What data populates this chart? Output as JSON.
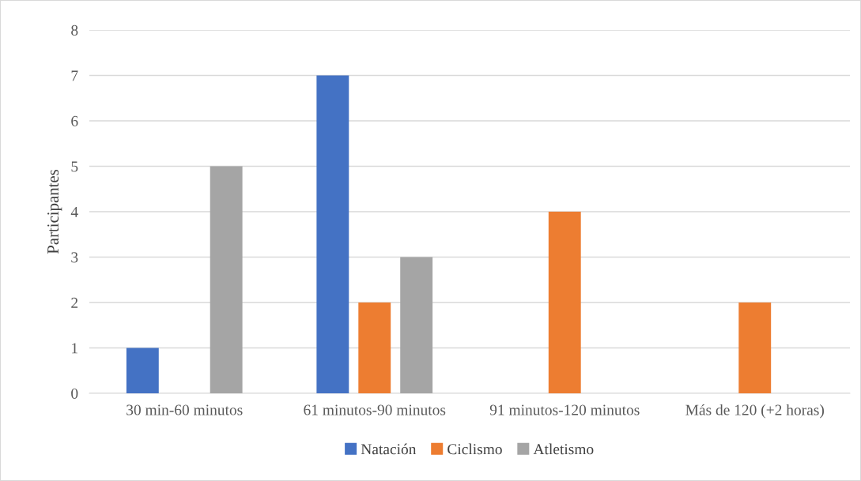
{
  "chart_data": {
    "type": "bar",
    "ylabel": "Participantes",
    "categories": [
      "30 min-60 minutos",
      "61 minutos-90 minutos",
      "91 minutos-120 minutos",
      "Más de 120 (+2 horas)"
    ],
    "series": [
      {
        "name": "Natación",
        "color": "#4472c4",
        "values": [
          1,
          7,
          0,
          0
        ]
      },
      {
        "name": "Ciclismo",
        "color": "#ed7d31",
        "values": [
          0,
          2,
          4,
          2
        ]
      },
      {
        "name": "Atletismo",
        "color": "#a5a5a5",
        "values": [
          5,
          3,
          0,
          0
        ]
      }
    ],
    "ylim": [
      0,
      8
    ],
    "yticks": [
      0,
      1,
      2,
      3,
      4,
      5,
      6,
      7,
      8
    ],
    "grid": "y",
    "legend": "bottom"
  }
}
